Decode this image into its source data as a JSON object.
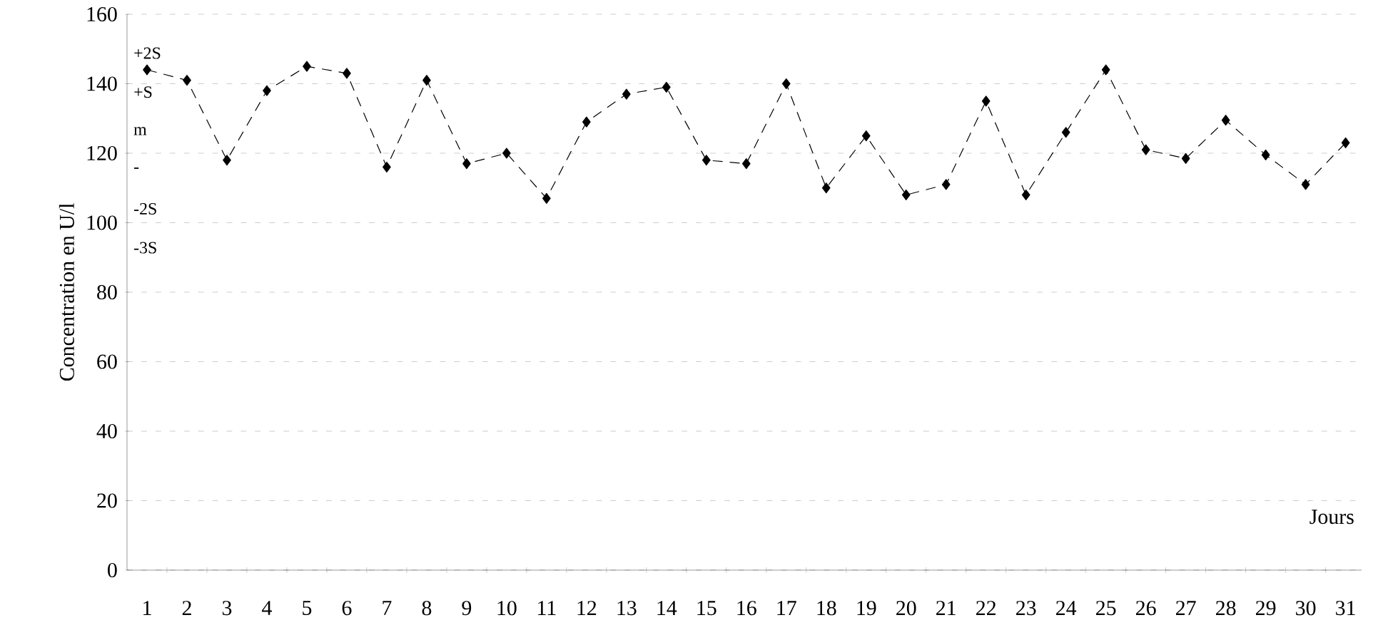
{
  "chart_data": {
    "type": "line",
    "ylabel": "Concentration en U/l",
    "xlabel": "Jours",
    "categories": [
      "1",
      "2",
      "3",
      "4",
      "5",
      "6",
      "7",
      "8",
      "9",
      "10",
      "11",
      "12",
      "13",
      "14",
      "15",
      "16",
      "17",
      "18",
      "19",
      "20",
      "21",
      "22",
      "23",
      "24",
      "25",
      "26",
      "27",
      "28",
      "29",
      "30",
      "31"
    ],
    "series": [
      {
        "color": "#000000",
        "values": [
          144,
          141,
          118,
          138,
          145,
          143,
          116,
          141,
          117,
          120,
          107,
          129,
          137,
          139,
          118,
          117,
          140,
          110,
          125,
          108,
          111,
          135,
          108,
          126,
          144,
          121,
          118.5,
          129.5,
          119.5,
          111,
          123
        ]
      }
    ],
    "ylim": [
      0,
      160
    ],
    "yticks": [
      0,
      20,
      40,
      60,
      80,
      100,
      120,
      140,
      160
    ],
    "annotations": [
      "+2S",
      "+S",
      "m",
      "-",
      "-2S",
      "-3S"
    ],
    "grid": "y",
    "marker": "diamond",
    "line_style": "dashed"
  }
}
